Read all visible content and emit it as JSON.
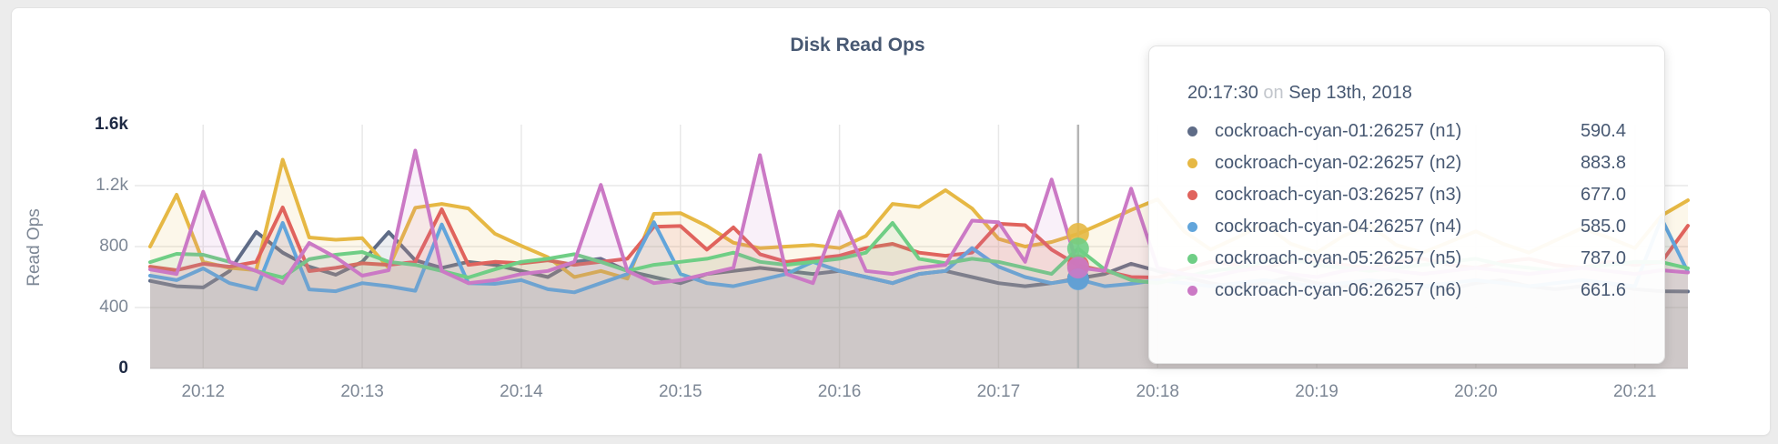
{
  "page": {
    "background": "#ececec",
    "card_background": "#ffffff"
  },
  "chart_data": {
    "type": "line",
    "title": "Disk Read Ops",
    "xlabel": "",
    "ylabel": "Read Ops",
    "ylim": [
      0,
      1600
    ],
    "grid": true,
    "legend": "none",
    "area_fill": true,
    "y_tick_labels": [
      "0",
      "400",
      "800",
      "1.2k",
      "1.6k"
    ],
    "y_tick_values": [
      0,
      400,
      800,
      1200,
      1600
    ],
    "x_tick_labels": [
      "20:12",
      "20:13",
      "20:14",
      "20:15",
      "20:16",
      "20:17",
      "20:18",
      "20:19",
      "20:20",
      "20:21"
    ],
    "x_start_time": "20:11:40",
    "x_end_time": "20:21:20",
    "x_interval_seconds": 10,
    "x_minute_tick_indices": [
      2,
      8,
      14,
      20,
      26,
      32,
      38,
      44,
      50,
      56
    ],
    "series": [
      {
        "name": "cockroach-cyan-01:26257 (n1)",
        "color": "#5f6c87",
        "values": [
          575,
          540,
          532,
          640,
          896,
          760,
          668,
          615,
          700,
          895,
          710,
          660,
          700,
          680,
          640,
          600,
          700,
          720,
          640,
          600,
          560,
          620,
          640,
          660,
          640,
          620,
          640,
          600,
          560,
          620,
          640,
          600,
          560,
          540,
          560,
          590.4,
          620,
          687,
          640,
          600,
          560,
          530,
          560,
          600,
          560,
          540,
          560,
          580,
          540,
          520,
          560,
          580,
          540,
          520,
          540,
          560,
          520,
          507,
          505
        ]
      },
      {
        "name": "cockroach-cyan-02:26257 (n2)",
        "color": "#e6b844",
        "values": [
          800,
          1140,
          700,
          660,
          645,
          1370,
          860,
          845,
          855,
          660,
          1055,
          1080,
          1050,
          885,
          805,
          730,
          600,
          640,
          590,
          1015,
          1020,
          935,
          825,
          790,
          800,
          810,
          790,
          870,
          1080,
          1060,
          1170,
          1050,
          850,
          800,
          830,
          883.8,
          960,
          1040,
          1110,
          900,
          780,
          860,
          950,
          820,
          760,
          870,
          940,
          810,
          760,
          830,
          900,
          820,
          760,
          840,
          920,
          860,
          790,
          1003,
          1104
        ]
      },
      {
        "name": "cockroach-cyan-03:26257 (n3)",
        "color": "#e0635d",
        "values": [
          668,
          645,
          687,
          668,
          700,
          1057,
          639,
          660,
          690,
          680,
          700,
          1045,
          680,
          700,
          690,
          710,
          680,
          700,
          720,
          930,
          935,
          780,
          926,
          750,
          700,
          720,
          740,
          790,
          818,
          760,
          740,
          760,
          950,
          940,
          780,
          677,
          640,
          600,
          597,
          650,
          700,
          680,
          660,
          700,
          720,
          680,
          660,
          700,
          720,
          680,
          660,
          700,
          720,
          680,
          660,
          700,
          680,
          698,
          937
        ]
      },
      {
        "name": "cockroach-cyan-04:26257 (n4)",
        "color": "#62a5db",
        "values": [
          609,
          580,
          657,
          560,
          519,
          955,
          519,
          507,
          560,
          540,
          510,
          945,
          560,
          555,
          580,
          520,
          500,
          560,
          620,
          960,
          620,
          560,
          540,
          580,
          620,
          700,
          640,
          600,
          560,
          620,
          640,
          790,
          668,
          600,
          560,
          585,
          540,
          556,
          580,
          560,
          540,
          560,
          580,
          560,
          540,
          560,
          580,
          560,
          540,
          560,
          580,
          560,
          540,
          560,
          580,
          560,
          540,
          985,
          633
        ]
      },
      {
        "name": "cockroach-cyan-05:26257 (n5)",
        "color": "#6fce85",
        "values": [
          698,
          752,
          746,
          700,
          640,
          597,
          717,
          746,
          764,
          700,
          680,
          640,
          597,
          650,
          700,
          720,
          750,
          700,
          640,
          680,
          700,
          720,
          760,
          700,
          680,
          700,
          720,
          760,
          955,
          720,
          690,
          720,
          700,
          660,
          620,
          787,
          650,
          580,
          560,
          600,
          640,
          660,
          700,
          720,
          680,
          660,
          640,
          660,
          680,
          700,
          720,
          680,
          660,
          640,
          660,
          680,
          700,
          698,
          658
        ]
      },
      {
        "name": "cockroach-cyan-06:26257 (n6)",
        "color": "#cb79c5",
        "values": [
          650,
          620,
          1160,
          700,
          640,
          560,
          824,
          729,
          609,
          645,
          1430,
          640,
          560,
          580,
          620,
          640,
          700,
          1205,
          640,
          560,
          580,
          620,
          660,
          1400,
          620,
          560,
          1030,
          640,
          620,
          660,
          680,
          970,
          960,
          700,
          1240,
          661.6,
          640,
          1180,
          660,
          620,
          600,
          640,
          660,
          620,
          600,
          640,
          660,
          640,
          620,
          640,
          660,
          640,
          620,
          640,
          660,
          640,
          620,
          645,
          630
        ]
      }
    ],
    "hover": {
      "index": 35,
      "time": "20:17:30"
    }
  },
  "tooltip": {
    "time": "20:17:30",
    "on_word": "on",
    "date": "Sep 13th, 2018",
    "rows": [
      {
        "label": "cockroach-cyan-01:26257 (n1)",
        "value": "590.4",
        "color": "#5f6c87"
      },
      {
        "label": "cockroach-cyan-02:26257 (n2)",
        "value": "883.8",
        "color": "#e6b844"
      },
      {
        "label": "cockroach-cyan-03:26257 (n3)",
        "value": "677.0",
        "color": "#e0635d"
      },
      {
        "label": "cockroach-cyan-04:26257 (n4)",
        "value": "585.0",
        "color": "#62a5db"
      },
      {
        "label": "cockroach-cyan-05:26257 (n5)",
        "value": "787.0",
        "color": "#6fce85"
      },
      {
        "label": "cockroach-cyan-06:26257 (n6)",
        "value": "661.6",
        "color": "#cb79c5"
      }
    ]
  },
  "style": {
    "grid_color": "#e8e8e8",
    "axis_line_color": "#e2e2e2",
    "hover_line_color": "#b5b5b5",
    "tick_color": "#7d8795",
    "tick_extreme_color": "#1e2a44",
    "title_color": "#485973",
    "tooltip_text_color": "#475872"
  }
}
